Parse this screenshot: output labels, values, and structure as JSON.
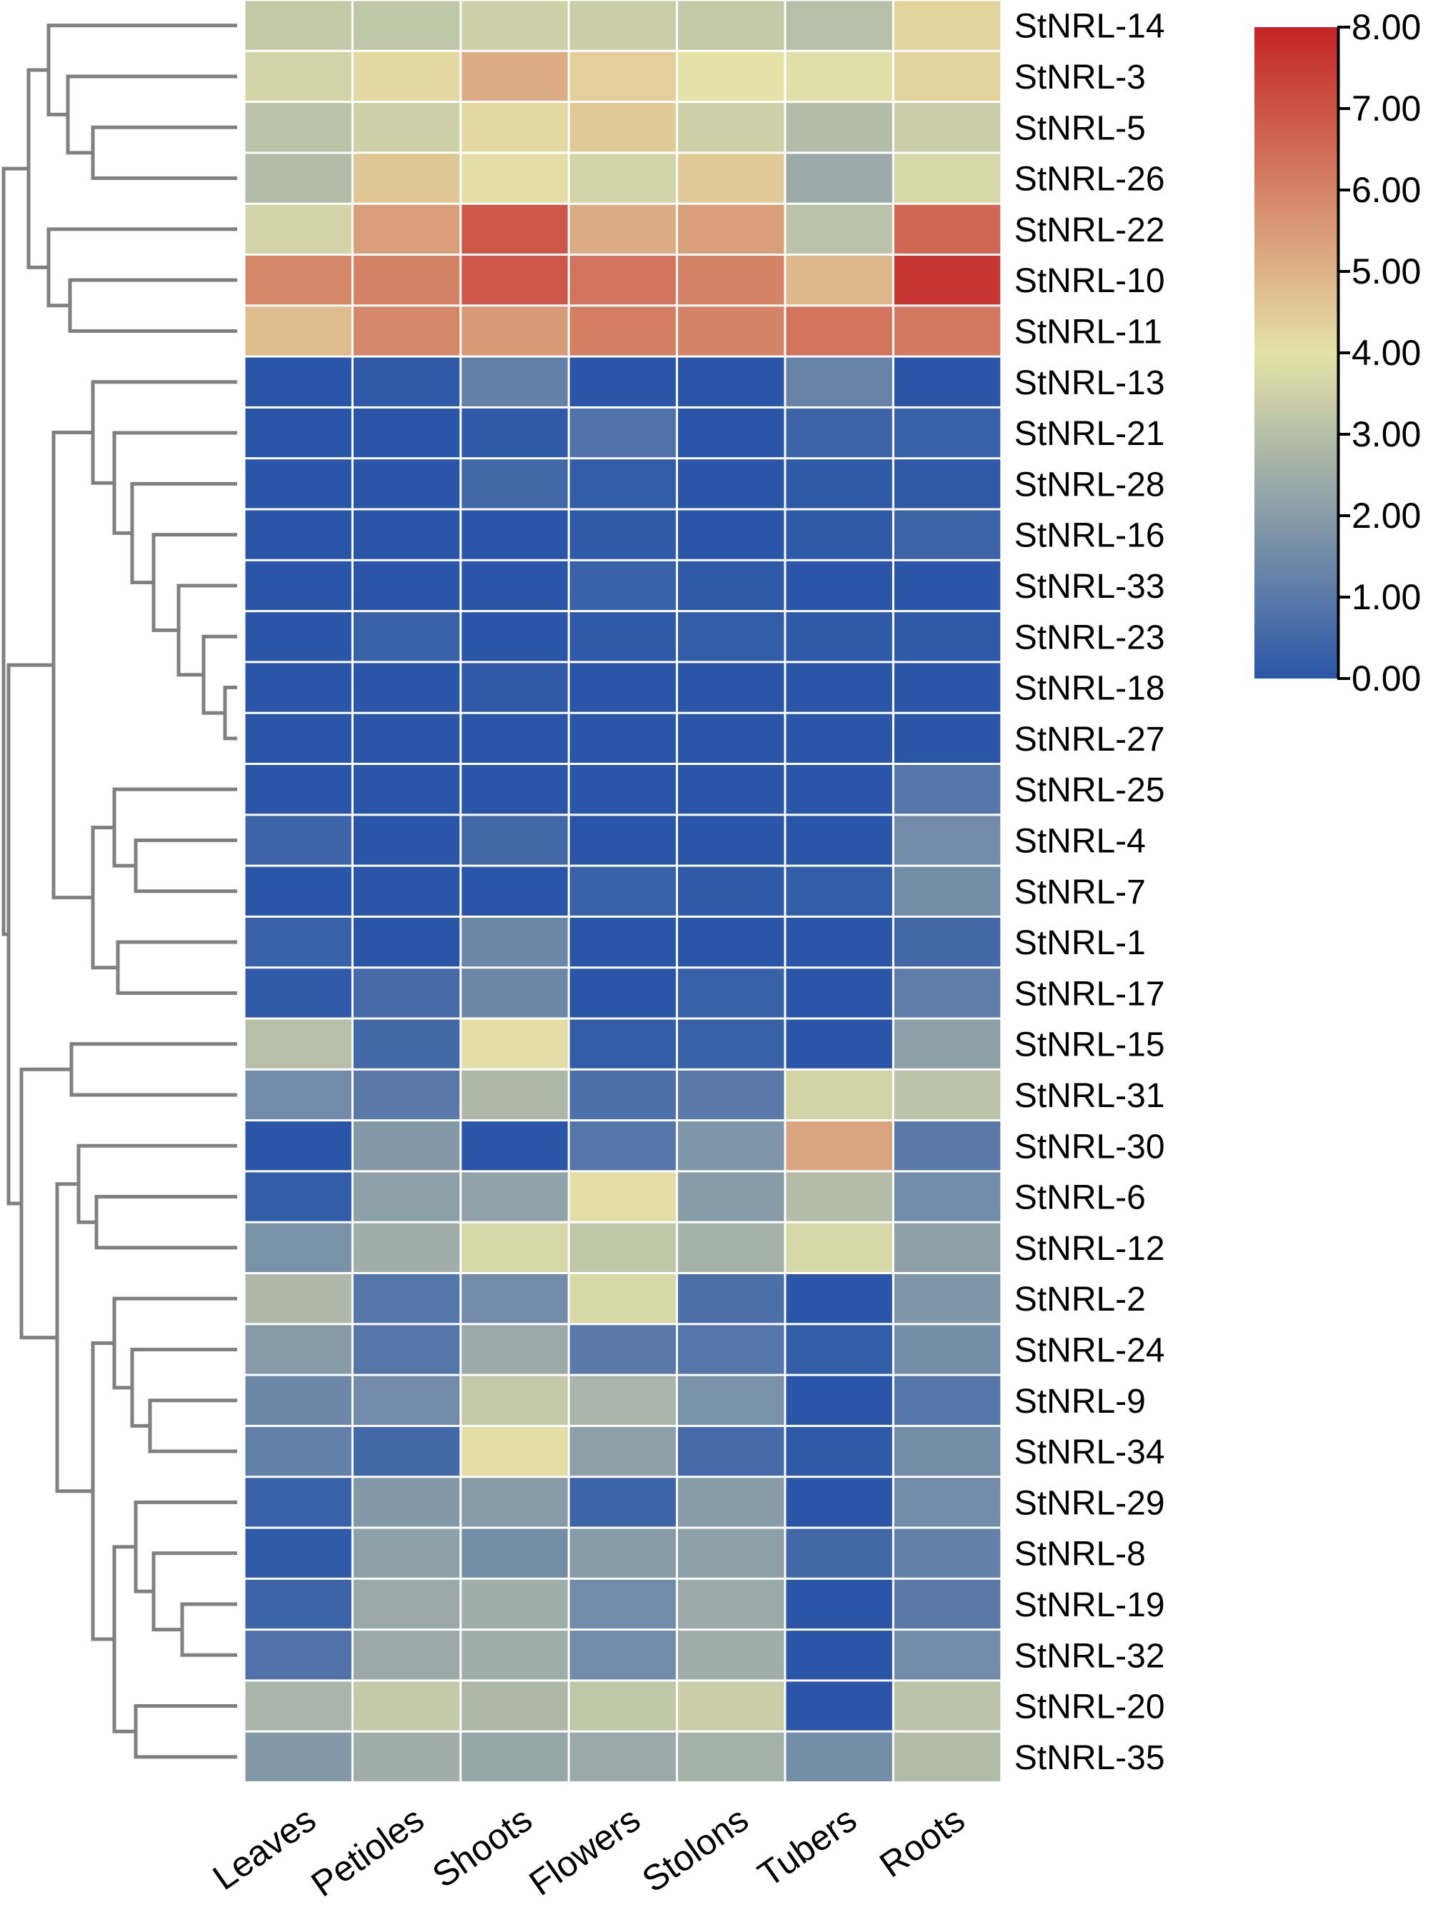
{
  "chart_data": {
    "type": "heatmap",
    "title": "",
    "xlabel": "",
    "ylabel": "",
    "columns": [
      "Leaves",
      "Petioles",
      "Shoots",
      "Flowers",
      "Stolons",
      "Tubers",
      "Roots"
    ],
    "rows": [
      "StNRL-14",
      "StNRL-3",
      "StNRL-5",
      "StNRL-26",
      "StNRL-22",
      "StNRL-10",
      "StNRL-11",
      "StNRL-13",
      "StNRL-21",
      "StNRL-28",
      "StNRL-16",
      "StNRL-33",
      "StNRL-23",
      "StNRL-18",
      "StNRL-27",
      "StNRL-25",
      "StNRL-4",
      "StNRL-7",
      "StNRL-1",
      "StNRL-17",
      "StNRL-15",
      "StNRL-31",
      "StNRL-30",
      "StNRL-6",
      "StNRL-12",
      "StNRL-2",
      "StNRL-24",
      "StNRL-9",
      "StNRL-34",
      "StNRL-29",
      "StNRL-8",
      "StNRL-19",
      "StNRL-32",
      "StNRL-20",
      "StNRL-35"
    ],
    "values": [
      [
        3.3,
        3.2,
        3.5,
        3.4,
        3.3,
        3.0,
        4.3
      ],
      [
        3.6,
        4.2,
        5.1,
        4.4,
        4.0,
        3.9,
        4.3
      ],
      [
        3.1,
        3.5,
        4.2,
        4.5,
        3.5,
        2.9,
        3.4
      ],
      [
        2.9,
        4.6,
        4.1,
        3.6,
        4.5,
        2.4,
        3.7
      ],
      [
        3.6,
        5.4,
        6.9,
        5.1,
        5.4,
        3.1,
        6.6
      ],
      [
        5.9,
        6.0,
        6.9,
        6.3,
        6.0,
        4.9,
        7.6
      ],
      [
        4.8,
        5.9,
        5.5,
        6.1,
        6.0,
        6.3,
        6.2
      ],
      [
        0.0,
        0.1,
        1.2,
        0.0,
        0.0,
        1.3,
        0.0
      ],
      [
        0.0,
        0.0,
        0.1,
        0.8,
        0.0,
        0.4,
        0.3
      ],
      [
        0.0,
        0.0,
        0.5,
        0.2,
        0.0,
        0.1,
        0.1
      ],
      [
        0.0,
        0.0,
        0.0,
        0.1,
        0.0,
        0.1,
        0.4
      ],
      [
        0.0,
        0.0,
        0.0,
        0.3,
        0.1,
        0.0,
        0.0
      ],
      [
        0.0,
        0.3,
        0.0,
        0.1,
        0.2,
        0.1,
        0.1
      ],
      [
        0.0,
        0.0,
        0.1,
        0.0,
        0.0,
        0.0,
        0.0
      ],
      [
        0.0,
        0.0,
        0.0,
        0.0,
        0.0,
        0.0,
        0.0
      ],
      [
        0.0,
        0.0,
        0.0,
        0.0,
        0.0,
        0.0,
        0.9
      ],
      [
        0.4,
        0.0,
        0.5,
        0.0,
        0.0,
        0.0,
        1.5
      ],
      [
        0.0,
        0.0,
        0.0,
        0.3,
        0.1,
        0.2,
        1.6
      ],
      [
        0.3,
        0.0,
        1.4,
        0.0,
        0.0,
        0.0,
        0.5
      ],
      [
        0.1,
        0.6,
        1.4,
        0.0,
        0.3,
        0.0,
        1.1
      ],
      [
        3.0,
        0.5,
        4.1,
        0.2,
        0.3,
        0.0,
        2.1
      ],
      [
        1.5,
        1.0,
        2.8,
        0.7,
        1.0,
        3.6,
        3.1
      ],
      [
        0.0,
        1.9,
        0.0,
        0.9,
        1.8,
        5.3,
        1.0
      ],
      [
        0.2,
        2.1,
        2.2,
        4.1,
        2.0,
        2.9,
        1.5
      ],
      [
        1.7,
        2.5,
        3.7,
        3.2,
        2.6,
        3.7,
        2.1
      ],
      [
        2.8,
        0.9,
        1.5,
        3.7,
        0.7,
        0.0,
        1.8
      ],
      [
        2.0,
        0.9,
        2.4,
        1.0,
        0.9,
        0.2,
        1.6
      ],
      [
        1.4,
        1.5,
        3.3,
        2.7,
        1.7,
        0.0,
        0.9
      ],
      [
        1.2,
        0.5,
        4.1,
        2.1,
        0.6,
        0.1,
        1.6
      ],
      [
        0.3,
        1.9,
        2.0,
        0.4,
        2.0,
        0.0,
        1.5
      ],
      [
        0.1,
        2.1,
        1.6,
        2.0,
        2.1,
        0.5,
        1.2
      ],
      [
        0.4,
        2.4,
        2.5,
        1.5,
        2.4,
        0.0,
        1.0
      ],
      [
        0.8,
        2.4,
        2.5,
        1.5,
        2.5,
        0.0,
        1.5
      ],
      [
        2.7,
        3.3,
        2.8,
        3.2,
        3.4,
        0.0,
        3.1
      ],
      [
        1.9,
        2.5,
        2.3,
        2.4,
        2.6,
        1.6,
        2.9
      ]
    ],
    "colorbar": {
      "min": 0,
      "max": 8,
      "ticks": [
        {
          "value": 8,
          "label": "8.00"
        },
        {
          "value": 7,
          "label": "7.00"
        },
        {
          "value": 6,
          "label": "6.00"
        },
        {
          "value": 5,
          "label": "5.00"
        },
        {
          "value": 4,
          "label": "4.00"
        },
        {
          "value": 3,
          "label": "3.00"
        },
        {
          "value": 2,
          "label": "2.00"
        },
        {
          "value": 1,
          "label": "1.00"
        },
        {
          "value": 0,
          "label": "0.00"
        }
      ],
      "colors": [
        "#2b56a8",
        "#e5e2a8",
        "#c42326"
      ]
    },
    "dendrogram": {
      "shown": true,
      "color": "#808080"
    },
    "legend_position": "top-right",
    "grid": false,
    "cell_border_color": "#ffffff"
  }
}
